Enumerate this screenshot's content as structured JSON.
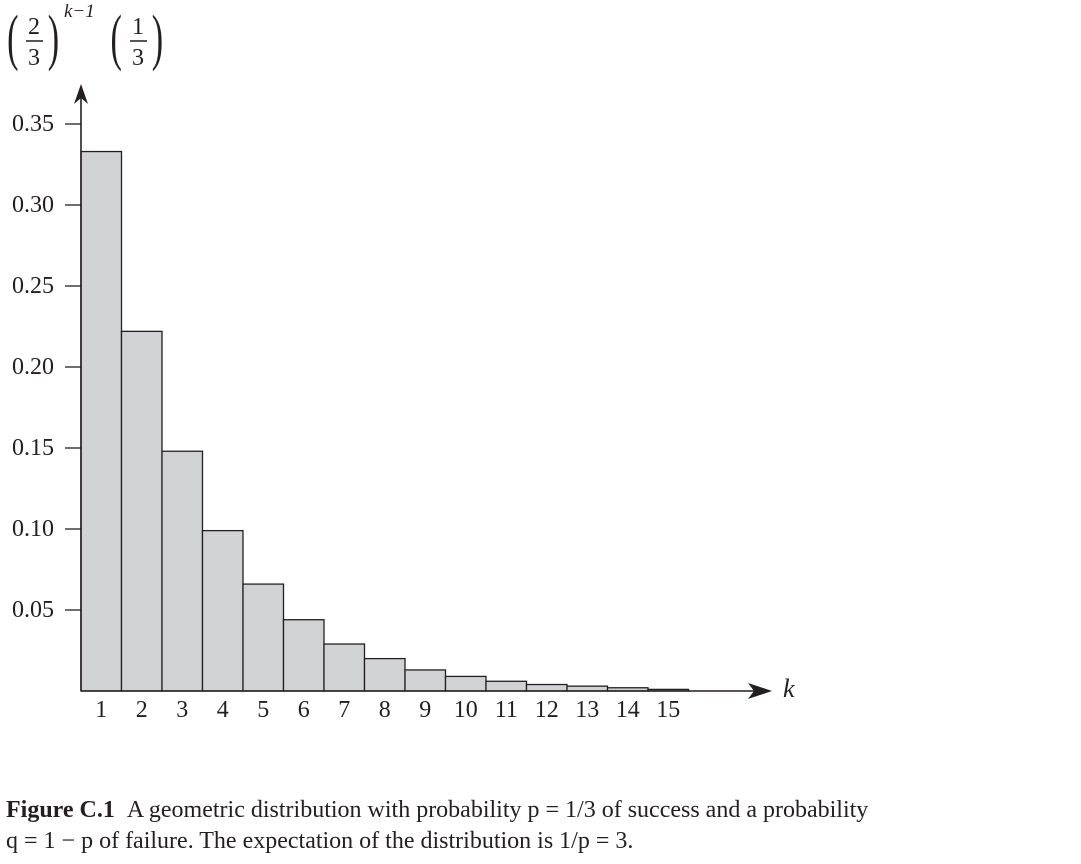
{
  "formula": {
    "base_num": "2",
    "base_den": "3",
    "exponent": "k−1",
    "factor_num": "1",
    "factor_den": "3"
  },
  "x_axis_symbol": "k",
  "caption": {
    "label": "Figure C.1",
    "text_line1": "A geometric distribution with probability p = 1/3 of success and a probability",
    "text_line2": "q = 1 − p of failure. The expectation of the distribution is 1/p = 3."
  },
  "colors": {
    "bar_fill": "#d1d2d4",
    "bar_stroke": "#231f20",
    "axis": "#231f20"
  },
  "chart_data": {
    "type": "bar",
    "title": "",
    "ylabel": "(2/3)^(k−1) (1/3)",
    "xlabel": "k",
    "categories": [
      "1",
      "2",
      "3",
      "4",
      "5",
      "6",
      "7",
      "8",
      "9",
      "10",
      "11",
      "12",
      "13",
      "14",
      "15"
    ],
    "values": [
      0.333,
      0.222,
      0.148,
      0.099,
      0.066,
      0.044,
      0.029,
      0.02,
      0.013,
      0.009,
      0.006,
      0.004,
      0.003,
      0.002,
      0.001
    ],
    "y_ticks": [
      "0.05",
      "0.10",
      "0.15",
      "0.20",
      "0.25",
      "0.30",
      "0.35"
    ],
    "y_tick_values": [
      0.05,
      0.1,
      0.15,
      0.2,
      0.25,
      0.3,
      0.35
    ],
    "ylim": [
      0,
      0.37
    ],
    "grid": false,
    "legend": null
  }
}
